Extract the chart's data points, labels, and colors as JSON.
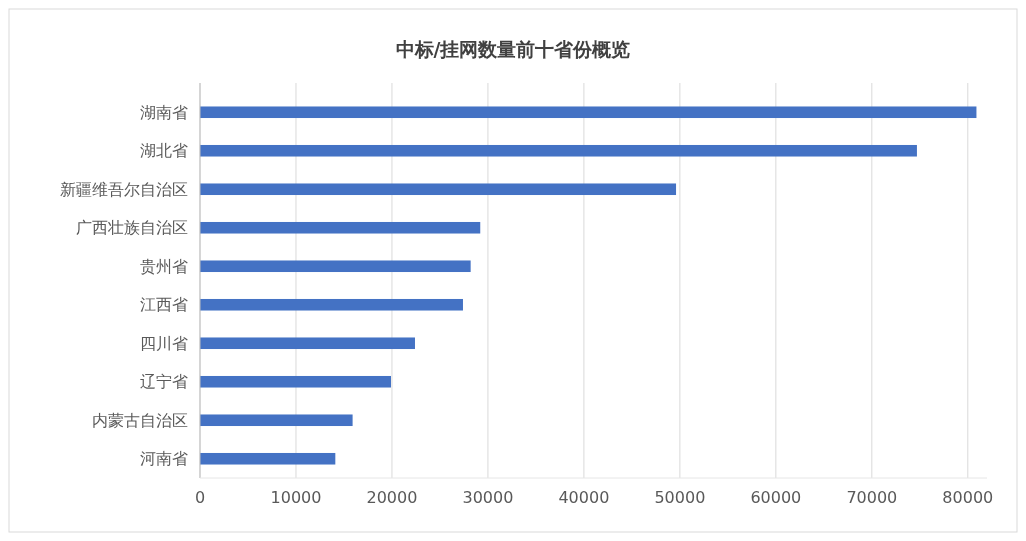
{
  "chart_data": {
    "type": "bar",
    "orientation": "horizontal",
    "title": "中标/挂网数量前十省份概览",
    "categories": [
      "湖南省",
      "湖北省",
      "新疆维吾尔自治区",
      "广西壮族自治区",
      "贵州省",
      "江西省",
      "四川省",
      "辽宁省",
      "内蒙古自治区",
      "河南省"
    ],
    "values": [
      80900,
      74700,
      49600,
      29200,
      28200,
      27400,
      22400,
      19900,
      15900,
      14100
    ],
    "color": "#4472c4",
    "xlim": [
      0,
      82000
    ],
    "xticks": [
      0,
      10000,
      20000,
      30000,
      40000,
      50000,
      60000,
      70000,
      80000
    ],
    "grid": "x"
  }
}
